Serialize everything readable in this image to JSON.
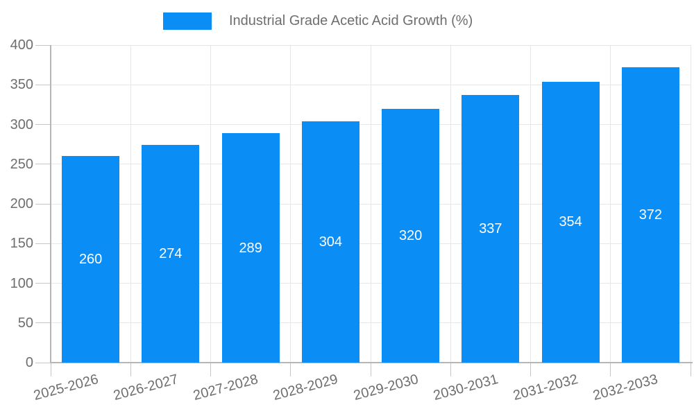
{
  "chart_data": {
    "type": "bar",
    "title": "Industrial Grade Acetic Acid Growth (%)",
    "categories": [
      "2025-2026",
      "2026-2027",
      "2027-2028",
      "2028-2029",
      "2029-2030",
      "2030-2031",
      "2031-2032",
      "2032-2033"
    ],
    "series": [
      {
        "name": "Industrial Grade Acetic Acid Growth (%)",
        "values": [
          260,
          274,
          289,
          304,
          320,
          337,
          354,
          372
        ]
      }
    ],
    "xlabel": "",
    "ylabel": "",
    "ylim": [
      0,
      400
    ],
    "yticks": [
      0,
      50,
      100,
      150,
      200,
      250,
      300,
      350,
      400
    ],
    "grid": true,
    "legend_position": "top",
    "x_label_rotation_deg": -15,
    "value_labels_inside_bars": true,
    "colors": {
      "bar": "#0b8df6",
      "value_label": "#ffffff",
      "axis_text": "#6e6e6e",
      "grid_line": "#e6e6e6",
      "axis_line": "#b6b6b6",
      "tick": "#c6c6c6",
      "background": "#ffffff"
    }
  }
}
